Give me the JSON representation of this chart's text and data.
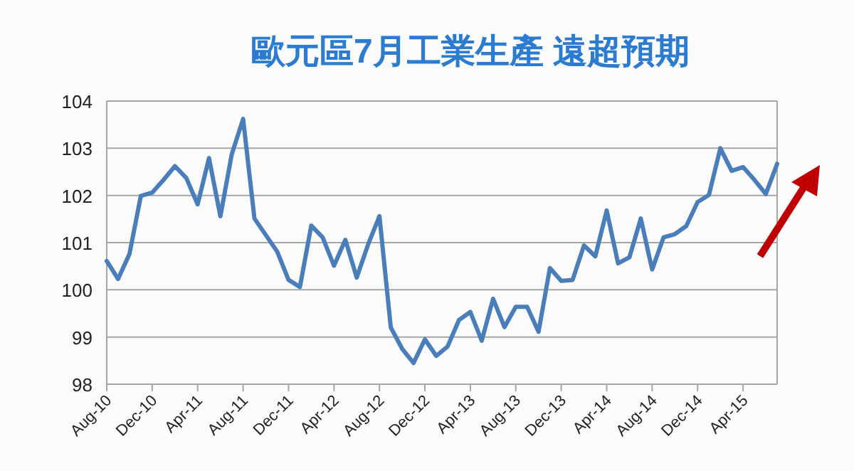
{
  "chart_data": {
    "type": "line",
    "title": "歐元區7月工業生產  遠超預期",
    "categories": [
      "Aug-10",
      null,
      null,
      null,
      "Dec-10",
      null,
      null,
      null,
      "Apr-11",
      null,
      null,
      null,
      "Aug-11",
      null,
      null,
      null,
      "Dec-11",
      null,
      null,
      null,
      "Apr-12",
      null,
      null,
      null,
      "Aug-12",
      null,
      null,
      null,
      "Dec-12",
      null,
      null,
      null,
      "Apr-13",
      null,
      null,
      null,
      "Aug-13",
      null,
      null,
      null,
      "Dec-13",
      null,
      null,
      null,
      "Apr-14",
      null,
      null,
      null,
      "Aug-14",
      null,
      null,
      null,
      "Dec-14",
      null,
      null,
      null,
      "Apr-15",
      null,
      null,
      null
    ],
    "series": [
      {
        "color": "#4a7ebb",
        "values": [
          100.61,
          100.23,
          100.76,
          101.99,
          102.06,
          102.33,
          102.62,
          102.37,
          101.81,
          102.79,
          101.56,
          102.87,
          103.62,
          101.51,
          101.16,
          100.81,
          100.21,
          100.06,
          101.36,
          101.11,
          100.51,
          101.06,
          100.26,
          100.96,
          101.56,
          99.2,
          98.75,
          98.45,
          98.95,
          98.6,
          98.8,
          99.36,
          99.53,
          98.92,
          99.81,
          99.21,
          99.64,
          99.64,
          99.11,
          100.46,
          100.19,
          100.21,
          100.94,
          100.71,
          101.68,
          100.56,
          100.69,
          101.51,
          100.43,
          101.11,
          101.18,
          101.35,
          101.86,
          102.01,
          103.0,
          102.52,
          102.6,
          102.33,
          102.03,
          102.67
        ]
      }
    ],
    "ylim": [
      98,
      104
    ],
    "yticks": [
      98,
      99,
      100,
      101,
      102,
      103,
      104
    ],
    "grid": "y",
    "marker": "none",
    "line_style": "solid"
  }
}
